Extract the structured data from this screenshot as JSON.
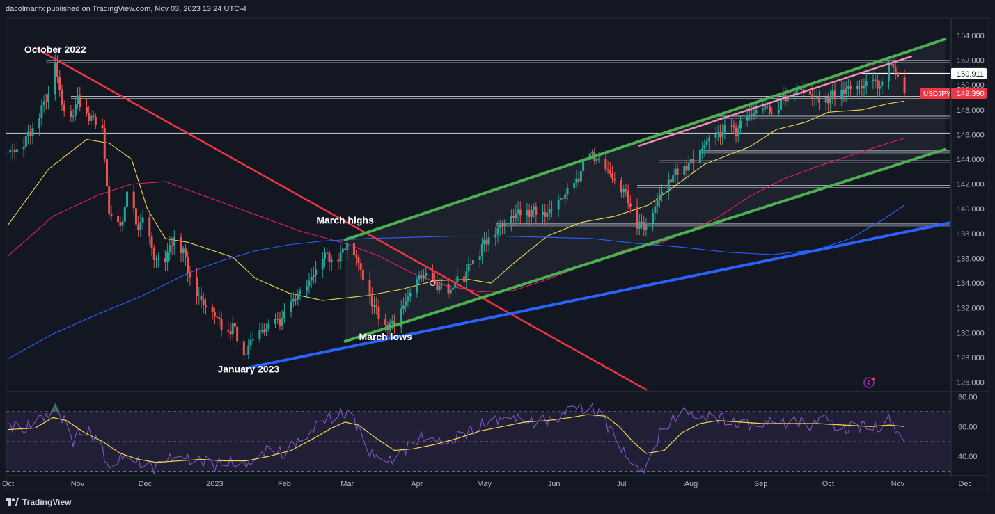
{
  "header": {
    "published_text": "dacolmanfx published on TradingView.com, Nov 03, 2023 13:24 UTC-4"
  },
  "footer": {
    "brand": "TradingView"
  },
  "colors": {
    "background": "#131722",
    "candle_up": "#26a69a",
    "candle_down": "#ef5350",
    "channel": "#4caf50",
    "support_blue": "#2962ff",
    "downtrend_red": "#f23645",
    "ma_yellow": "#f5d74a",
    "ma_pink": "#e91e63",
    "ma_blue": "#2962ff",
    "rsi_purple": "#7e57c2",
    "rsi_signal": "#f5d74a"
  },
  "chart_data": {
    "type": "candlestick",
    "symbol": "USDJPY",
    "last_price": "149.390",
    "marked_level": "150.911",
    "y_ticks": [
      "154.000",
      "152.000",
      "150.000",
      "148.000",
      "146.000",
      "144.000",
      "142.000",
      "140.000",
      "138.000",
      "136.000",
      "134.000",
      "132.000",
      "130.000",
      "128.000",
      "126.000"
    ],
    "y_tick_values": [
      154,
      152,
      150,
      148,
      146,
      144,
      142,
      140,
      138,
      136,
      134,
      132,
      130,
      128,
      126
    ],
    "ylim": [
      125.3,
      155.4
    ],
    "x_ticks": [
      "Oct",
      "Nov",
      "Dec",
      "2023",
      "Feb",
      "Mar",
      "Apr",
      "May",
      "Jun",
      "Jul",
      "Aug",
      "Sep",
      "Oct",
      "Nov",
      "Dec"
    ],
    "x_tick_days": [
      0,
      31,
      61,
      92,
      123,
      151,
      182,
      212,
      243,
      273,
      304,
      335,
      365,
      396,
      426
    ],
    "annotations": [
      {
        "text": "October 2022",
        "day": 21,
        "price": 152.6
      },
      {
        "text": "March highs",
        "day": 150,
        "price": 138.8
      },
      {
        "text": "March lows",
        "day": 168,
        "price": 129.4
      },
      {
        "text": "January 2023",
        "day": 107,
        "price": 126.8
      }
    ],
    "horizontal_levels": [
      151.9,
      149.0,
      147.4,
      146.0,
      144.6,
      143.8,
      141.8,
      140.8,
      138.7
    ],
    "trendlines": {
      "channel_upper": [
        [
          150,
          137.5
        ],
        [
          417,
          153.7
        ]
      ],
      "channel_lower": [
        [
          150,
          129.3
        ],
        [
          417,
          144.8
        ]
      ],
      "rising_wedge": [
        [
          281,
          145.1
        ],
        [
          402,
          152.3
        ]
      ],
      "support_blue": [
        [
          105,
          127.1
        ],
        [
          420,
          138.9
        ]
      ],
      "downtrend_red": [
        [
          12,
          153.0
        ],
        [
          284,
          125.4
        ]
      ]
    },
    "ohlc_path": [
      [
        0,
        144.6
      ],
      [
        6,
        145.0
      ],
      [
        12,
        146.9
      ],
      [
        18,
        149.3
      ],
      [
        21,
        151.9
      ],
      [
        24,
        148.3
      ],
      [
        28,
        147.4
      ],
      [
        31,
        148.8
      ],
      [
        36,
        147.5
      ],
      [
        42,
        146.5
      ],
      [
        45,
        139.5
      ],
      [
        50,
        138.5
      ],
      [
        54,
        141.8
      ],
      [
        57,
        138.6
      ],
      [
        61,
        139.1
      ],
      [
        65,
        136.0
      ],
      [
        70,
        135.9
      ],
      [
        74,
        137.8
      ],
      [
        78,
        136.5
      ],
      [
        82,
        133.9
      ],
      [
        86,
        132.5
      ],
      [
        92,
        131.5
      ],
      [
        97,
        129.8
      ],
      [
        100,
        130.6
      ],
      [
        105,
        128.2
      ],
      [
        110,
        129.9
      ],
      [
        115,
        130.3
      ],
      [
        120,
        130.9
      ],
      [
        124,
        131.4
      ],
      [
        128,
        133.0
      ],
      [
        132,
        133.4
      ],
      [
        136,
        134.8
      ],
      [
        140,
        136.3
      ],
      [
        144,
        136.0
      ],
      [
        148,
        136.2
      ],
      [
        151,
        137.3
      ],
      [
        155,
        136.1
      ],
      [
        160,
        133.3
      ],
      [
        164,
        131.7
      ],
      [
        168,
        130.6
      ],
      [
        172,
        130.7
      ],
      [
        176,
        132.3
      ],
      [
        180,
        133.4
      ],
      [
        184,
        134.8
      ],
      [
        188,
        134.0
      ],
      [
        192,
        133.8
      ],
      [
        196,
        133.0
      ],
      [
        200,
        134.5
      ],
      [
        203,
        134.3
      ],
      [
        206,
        135.8
      ],
      [
        210,
        136.6
      ],
      [
        214,
        137.8
      ],
      [
        218,
        138.3
      ],
      [
        222,
        139.2
      ],
      [
        226,
        139.6
      ],
      [
        230,
        139.8
      ],
      [
        236,
        139.8
      ],
      [
        240,
        139.6
      ],
      [
        244,
        140.4
      ],
      [
        248,
        141.2
      ],
      [
        252,
        141.8
      ],
      [
        256,
        143.5
      ],
      [
        260,
        144.4
      ],
      [
        264,
        143.6
      ],
      [
        268,
        142.8
      ],
      [
        272,
        142.0
      ],
      [
        276,
        140.8
      ],
      [
        280,
        138.8
      ],
      [
        283,
        138.6
      ],
      [
        287,
        139.8
      ],
      [
        291,
        141.5
      ],
      [
        295,
        142.5
      ],
      [
        299,
        143.2
      ],
      [
        303,
        143.6
      ],
      [
        306,
        144.0
      ],
      [
        309,
        145.0
      ],
      [
        312,
        145.6
      ],
      [
        316,
        146.0
      ],
      [
        320,
        146.5
      ],
      [
        324,
        146.3
      ],
      [
        328,
        147.2
      ],
      [
        332,
        147.8
      ],
      [
        336,
        148.3
      ],
      [
        340,
        147.9
      ],
      [
        344,
        148.6
      ],
      [
        348,
        149.5
      ],
      [
        352,
        149.8
      ],
      [
        356,
        149.4
      ],
      [
        360,
        148.7
      ],
      [
        364,
        148.9
      ],
      [
        368,
        149.2
      ],
      [
        372,
        149.6
      ],
      [
        376,
        149.8
      ],
      [
        380,
        149.9
      ],
      [
        384,
        150.2
      ],
      [
        387,
        150.1
      ],
      [
        390,
        149.7
      ],
      [
        392,
        151.3
      ],
      [
        394,
        151.7
      ],
      [
        396,
        150.4
      ],
      [
        399,
        149.4
      ]
    ],
    "moving_averages": [
      {
        "color": "#f5d74a",
        "points": [
          [
            0,
            138.7
          ],
          [
            18,
            143.2
          ],
          [
            35,
            145.6
          ],
          [
            45,
            145.3
          ],
          [
            55,
            144.0
          ],
          [
            62,
            140.0
          ],
          [
            70,
            137.6
          ],
          [
            80,
            137.3
          ],
          [
            90,
            136.7
          ],
          [
            100,
            136.1
          ],
          [
            110,
            134.4
          ],
          [
            125,
            133.2
          ],
          [
            140,
            132.6
          ],
          [
            150,
            132.8
          ],
          [
            160,
            133.0
          ],
          [
            175,
            133.5
          ],
          [
            190,
            134.2
          ],
          [
            205,
            134.3
          ],
          [
            215,
            134.0
          ],
          [
            225,
            135.6
          ],
          [
            240,
            137.8
          ],
          [
            255,
            138.9
          ],
          [
            270,
            139.4
          ],
          [
            285,
            140.3
          ],
          [
            295,
            141.6
          ],
          [
            310,
            143.6
          ],
          [
            320,
            144.3
          ],
          [
            330,
            145.0
          ],
          [
            342,
            146.4
          ],
          [
            355,
            147.0
          ],
          [
            365,
            147.8
          ],
          [
            380,
            148.0
          ],
          [
            392,
            148.5
          ],
          [
            399,
            148.7
          ]
        ]
      },
      {
        "color": "#e91e63",
        "points": [
          [
            0,
            136.2
          ],
          [
            20,
            139.4
          ],
          [
            40,
            141.1
          ],
          [
            55,
            142.0
          ],
          [
            70,
            142.2
          ],
          [
            85,
            141.2
          ],
          [
            100,
            140.2
          ],
          [
            115,
            139.2
          ],
          [
            130,
            138.2
          ],
          [
            150,
            137.2
          ],
          [
            165,
            136.2
          ],
          [
            180,
            134.8
          ],
          [
            195,
            133.8
          ],
          [
            210,
            133.3
          ],
          [
            225,
            133.4
          ],
          [
            240,
            134.3
          ],
          [
            260,
            135.7
          ],
          [
            275,
            136.7
          ],
          [
            290,
            137.2
          ],
          [
            300,
            138.0
          ],
          [
            315,
            139.2
          ],
          [
            330,
            141.0
          ],
          [
            345,
            142.4
          ],
          [
            360,
            143.4
          ],
          [
            375,
            144.3
          ],
          [
            390,
            145.2
          ],
          [
            399,
            145.7
          ]
        ]
      },
      {
        "color": "#2962ff",
        "points": [
          [
            0,
            127.9
          ],
          [
            20,
            129.9
          ],
          [
            40,
            131.5
          ],
          [
            60,
            133.0
          ],
          [
            80,
            134.8
          ],
          [
            95,
            135.8
          ],
          [
            110,
            136.6
          ],
          [
            125,
            137.1
          ],
          [
            140,
            137.4
          ],
          [
            160,
            137.6
          ],
          [
            180,
            137.7
          ],
          [
            200,
            137.8
          ],
          [
            220,
            137.8
          ],
          [
            240,
            137.7
          ],
          [
            260,
            137.6
          ],
          [
            280,
            137.2
          ],
          [
            300,
            136.9
          ],
          [
            320,
            136.5
          ],
          [
            340,
            136.3
          ],
          [
            360,
            136.7
          ],
          [
            375,
            137.6
          ],
          [
            390,
            139.2
          ],
          [
            399,
            140.3
          ]
        ]
      }
    ],
    "rsi": {
      "y_ticks": [
        "80.00",
        "60.00",
        "40.00"
      ],
      "y_tick_values": [
        80,
        60,
        40
      ],
      "ylim": [
        27,
        83
      ],
      "band": [
        30,
        70
      ],
      "midline": 50
    },
    "rsi_path": [
      [
        0,
        62
      ],
      [
        8,
        58
      ],
      [
        14,
        64
      ],
      [
        19,
        70
      ],
      [
        21,
        76
      ],
      [
        23,
        68
      ],
      [
        26,
        60
      ],
      [
        29,
        49
      ],
      [
        32,
        58
      ],
      [
        36,
        55
      ],
      [
        40,
        52
      ],
      [
        45,
        32
      ],
      [
        50,
        40
      ],
      [
        55,
        36
      ],
      [
        61,
        35
      ],
      [
        65,
        33
      ],
      [
        70,
        40
      ],
      [
        75,
        36
      ],
      [
        80,
        39
      ],
      [
        86,
        38
      ],
      [
        92,
        34
      ],
      [
        97,
        37
      ],
      [
        102,
        33
      ],
      [
        107,
        35
      ],
      [
        112,
        42
      ],
      [
        117,
        45
      ],
      [
        123,
        40
      ],
      [
        128,
        50
      ],
      [
        133,
        55
      ],
      [
        138,
        60
      ],
      [
        143,
        66
      ],
      [
        148,
        68
      ],
      [
        152,
        70
      ],
      [
        156,
        60
      ],
      [
        160,
        44
      ],
      [
        164,
        39
      ],
      [
        168,
        35
      ],
      [
        173,
        41
      ],
      [
        178,
        47
      ],
      [
        183,
        53
      ],
      [
        188,
        48
      ],
      [
        193,
        52
      ],
      [
        198,
        50
      ],
      [
        203,
        55
      ],
      [
        208,
        58
      ],
      [
        213,
        62
      ],
      [
        218,
        65
      ],
      [
        223,
        68
      ],
      [
        228,
        64
      ],
      [
        233,
        62
      ],
      [
        238,
        64
      ],
      [
        243,
        66
      ],
      [
        248,
        69
      ],
      [
        253,
        72
      ],
      [
        258,
        74
      ],
      [
        262,
        70
      ],
      [
        266,
        64
      ],
      [
        270,
        54
      ],
      [
        274,
        42
      ],
      [
        278,
        33
      ],
      [
        282,
        30
      ],
      [
        286,
        40
      ],
      [
        290,
        55
      ],
      [
        294,
        62
      ],
      [
        298,
        66
      ],
      [
        303,
        70
      ],
      [
        308,
        68
      ],
      [
        313,
        64
      ],
      [
        318,
        66
      ],
      [
        323,
        61
      ],
      [
        328,
        64
      ],
      [
        333,
        60
      ],
      [
        338,
        63
      ],
      [
        343,
        62
      ],
      [
        348,
        63
      ],
      [
        353,
        64
      ],
      [
        358,
        61
      ],
      [
        363,
        65
      ],
      [
        368,
        62
      ],
      [
        373,
        58
      ],
      [
        378,
        61
      ],
      [
        383,
        60
      ],
      [
        388,
        57
      ],
      [
        392,
        66
      ],
      [
        395,
        59
      ],
      [
        399,
        50
      ]
    ],
    "rsi_signal_path": [
      [
        0,
        58
      ],
      [
        12,
        59
      ],
      [
        20,
        66
      ],
      [
        26,
        64
      ],
      [
        34,
        56
      ],
      [
        42,
        50
      ],
      [
        50,
        42
      ],
      [
        58,
        38
      ],
      [
        66,
        36
      ],
      [
        76,
        37
      ],
      [
        86,
        38
      ],
      [
        96,
        37
      ],
      [
        106,
        37
      ],
      [
        116,
        40
      ],
      [
        126,
        44
      ],
      [
        136,
        52
      ],
      [
        144,
        59
      ],
      [
        150,
        63
      ],
      [
        156,
        61
      ],
      [
        164,
        52
      ],
      [
        172,
        44
      ],
      [
        180,
        45
      ],
      [
        190,
        48
      ],
      [
        200,
        52
      ],
      [
        210,
        57
      ],
      [
        220,
        60
      ],
      [
        230,
        63
      ],
      [
        240,
        64
      ],
      [
        250,
        66
      ],
      [
        258,
        68
      ],
      [
        266,
        67
      ],
      [
        272,
        60
      ],
      [
        278,
        50
      ],
      [
        284,
        42
      ],
      [
        292,
        44
      ],
      [
        300,
        56
      ],
      [
        308,
        62
      ],
      [
        316,
        64
      ],
      [
        326,
        63
      ],
      [
        336,
        62
      ],
      [
        348,
        62
      ],
      [
        360,
        62
      ],
      [
        372,
        61
      ],
      [
        384,
        60
      ],
      [
        392,
        61
      ],
      [
        399,
        60
      ]
    ]
  }
}
